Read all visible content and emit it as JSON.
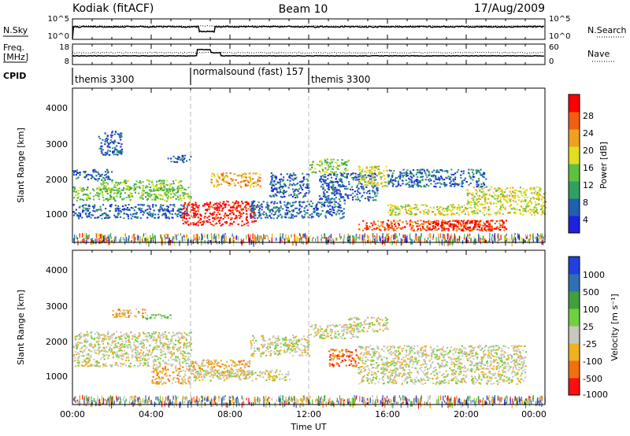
{
  "header": {
    "station": "Kodiak (fitACF)",
    "beam": "Beam 10",
    "date": "17/Aug/2009"
  },
  "nsky_panel": {
    "left_label": "N.Sky",
    "right_label": "N.Search",
    "right_line_style": "dotted",
    "left_ticks": [
      "10^5",
      "10^0"
    ],
    "right_ticks": [
      "10^5",
      "10^0"
    ]
  },
  "freq_panel": {
    "left_label_1": "Freq.",
    "left_label_2": "[MHz]",
    "right_label": "Nave",
    "right_line_style": "dotted",
    "left_ticks": [
      "18",
      "8"
    ],
    "right_ticks": [
      "60",
      "0"
    ]
  },
  "cpid_panel": {
    "label": "CPID",
    "segments": [
      {
        "name": "themis 3300",
        "start_hour": 0
      },
      {
        "name": "normalsound (fast) 157",
        "start_hour": 6
      },
      {
        "name": "themis 3300",
        "start_hour": 12
      }
    ]
  },
  "power_panel": {
    "ylabel": "Slant Range [km]",
    "colorbar_label": "Power [dB]",
    "colorbar_ticks": [
      "28",
      "24",
      "20",
      "16",
      "12",
      "8",
      "4"
    ],
    "colors": [
      "#2020e0",
      "#2060b0",
      "#30a060",
      "#60c040",
      "#e0e020",
      "#f0a020",
      "#f06010",
      "#ff0000"
    ]
  },
  "velocity_panel": {
    "ylabel": "Slant Range [km]",
    "colorbar_label": "Velocity [m s⁻¹]",
    "colorbar_ticks": [
      "1000",
      "500",
      "100",
      "25",
      "-25",
      "-100",
      "-500",
      "-1000"
    ],
    "colors": [
      "#2040e0",
      "#3070b0",
      "#40a040",
      "#70d040",
      "#c8c8c0",
      "#f0b020",
      "#f07010",
      "#ff1010"
    ]
  },
  "time_axis": {
    "label": "Time UT",
    "ticks": [
      "00:00",
      "04:00",
      "08:00",
      "12:00",
      "16:00",
      "20:00",
      "00:00"
    ]
  },
  "chart_data": {
    "type": "heatmap",
    "x_range_hours": [
      0,
      24
    ],
    "y_ticks_km": [
      1000,
      2000,
      3000,
      4000
    ],
    "ylim_km": [
      200,
      4600
    ],
    "mode_boundaries_hours": [
      6,
      12
    ],
    "power_blobs": [
      {
        "t0": 0.0,
        "t1": 6.0,
        "r0": 1400,
        "r1": 1800,
        "level": 3
      },
      {
        "t0": 0.0,
        "t1": 5.8,
        "r0": 900,
        "r1": 1300,
        "level": 1
      },
      {
        "t0": 0.0,
        "t1": 2.0,
        "r0": 2000,
        "r1": 2300,
        "level": 1
      },
      {
        "t0": 1.2,
        "t1": 5.5,
        "r0": 1700,
        "r1": 2000,
        "level": 3
      },
      {
        "t0": 1.3,
        "t1": 2.5,
        "r0": 2700,
        "r1": 3400,
        "level": 1
      },
      {
        "t0": 4.8,
        "t1": 6.0,
        "r0": 2500,
        "r1": 2700,
        "level": 1
      },
      {
        "t0": 5.5,
        "t1": 9.3,
        "r0": 700,
        "r1": 1400,
        "level": 7
      },
      {
        "t0": 7.0,
        "t1": 9.5,
        "r0": 1800,
        "r1": 2200,
        "level": 5
      },
      {
        "t0": 9.0,
        "t1": 13.8,
        "r0": 900,
        "r1": 1400,
        "level": 1
      },
      {
        "t0": 10.0,
        "t1": 12.0,
        "r0": 1500,
        "r1": 2200,
        "level": 1
      },
      {
        "t0": 12.0,
        "t1": 14.0,
        "r0": 2200,
        "r1": 2600,
        "level": 3
      },
      {
        "t0": 12.5,
        "t1": 15.5,
        "r0": 1400,
        "r1": 2200,
        "level": 1
      },
      {
        "t0": 14.5,
        "t1": 16.0,
        "r0": 1800,
        "r1": 2400,
        "level": 4
      },
      {
        "t0": 14.5,
        "t1": 22.0,
        "r0": 550,
        "r1": 850,
        "level": 6
      },
      {
        "t0": 16.0,
        "t1": 24.0,
        "r0": 1000,
        "r1": 1300,
        "level": 4
      },
      {
        "t0": 18.0,
        "t1": 22.0,
        "r0": 550,
        "r1": 850,
        "level": 7
      },
      {
        "t0": 20.0,
        "t1": 24.0,
        "r0": 1300,
        "r1": 1800,
        "level": 4
      },
      {
        "t0": 16.0,
        "t1": 21.0,
        "r0": 1800,
        "r1": 2300,
        "level": 1
      }
    ],
    "velocity_blobs": [
      {
        "t0": 0.0,
        "t1": 6.0,
        "r0": 1300,
        "r1": 2300,
        "level": 4
      },
      {
        "t0": 2.0,
        "t1": 3.8,
        "r0": 2700,
        "r1": 2950,
        "level": 5
      },
      {
        "t0": 3.5,
        "t1": 5.0,
        "r0": 2650,
        "r1": 2800,
        "level": 3
      },
      {
        "t0": 4.0,
        "t1": 6.0,
        "r0": 800,
        "r1": 1300,
        "level": 5
      },
      {
        "t0": 6.0,
        "t1": 9.0,
        "r0": 1000,
        "r1": 1500,
        "level": 5
      },
      {
        "t0": 6.0,
        "t1": 11.0,
        "r0": 900,
        "r1": 1200,
        "level": 4
      },
      {
        "t0": 9.0,
        "t1": 12.0,
        "r0": 1600,
        "r1": 2200,
        "level": 4
      },
      {
        "t0": 12.0,
        "t1": 14.5,
        "r0": 2100,
        "r1": 2500,
        "level": 4
      },
      {
        "t0": 13.0,
        "t1": 14.5,
        "r0": 1300,
        "r1": 1800,
        "level": 6
      },
      {
        "t0": 14.5,
        "t1": 23.0,
        "r0": 800,
        "r1": 1900,
        "level": 4
      },
      {
        "t0": 14.0,
        "t1": 16.0,
        "r0": 2300,
        "r1": 2700,
        "level": 4
      }
    ]
  }
}
